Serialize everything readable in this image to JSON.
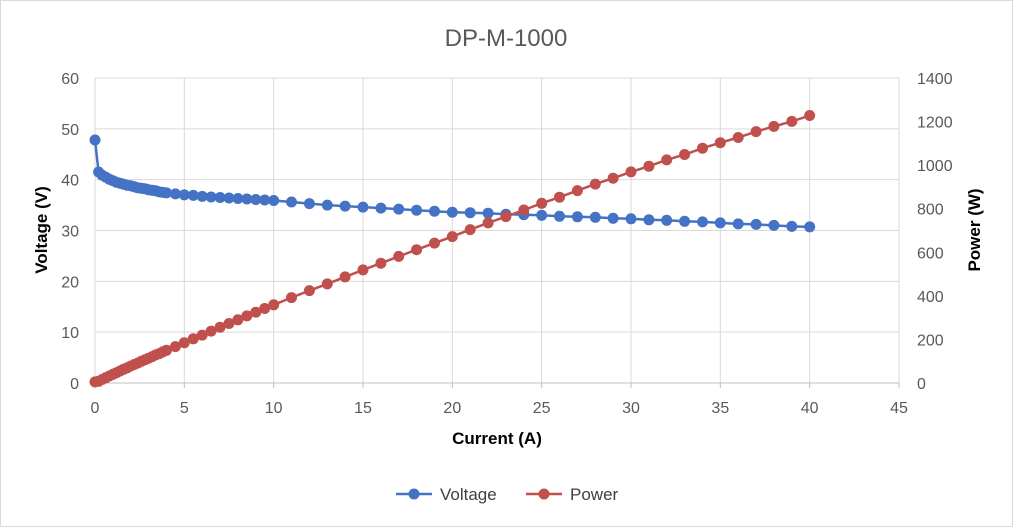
{
  "chart_data": {
    "type": "line",
    "title": "DP-M-1000",
    "xlabel": "Current (A)",
    "ylabel": "Voltage (V)",
    "y2label": "Power (W)",
    "xlim": [
      0,
      45
    ],
    "ylim": [
      0,
      60
    ],
    "y2lim": [
      0,
      1400
    ],
    "xticks": [
      "0",
      "5",
      "10",
      "15",
      "20",
      "25",
      "30",
      "35",
      "40",
      "45"
    ],
    "yticks": [
      "0",
      "10",
      "20",
      "30",
      "40",
      "50",
      "60"
    ],
    "y2ticks": [
      "0",
      "200",
      "400",
      "600",
      "800",
      "1000",
      "1200",
      "1400"
    ],
    "grid": true,
    "legend_position": "bottom",
    "series": [
      {
        "name": "Voltage",
        "axis": "left",
        "color": "#4472c4",
        "x": [
          0,
          0.2,
          0.4,
          0.6,
          0.8,
          1.0,
          1.2,
          1.4,
          1.6,
          1.8,
          2.0,
          2.2,
          2.4,
          2.6,
          2.8,
          3.0,
          3.2,
          3.4,
          3.6,
          3.8,
          4,
          4.5,
          5,
          5.5,
          6,
          6.5,
          7,
          7.5,
          8,
          8.5,
          9,
          9.5,
          10,
          11,
          12,
          13,
          14,
          15,
          16,
          17,
          18,
          19,
          20,
          21,
          22,
          23,
          24,
          25,
          26,
          27,
          28,
          29,
          30,
          31,
          32,
          33,
          34,
          35,
          36,
          37,
          38,
          39,
          40
        ],
        "y": [
          47.8,
          41.5,
          40.9,
          40.5,
          40.1,
          39.8,
          39.5,
          39.3,
          39.1,
          38.9,
          38.8,
          38.6,
          38.4,
          38.3,
          38.2,
          38.0,
          37.9,
          37.8,
          37.6,
          37.5,
          37.4,
          37.2,
          37.0,
          36.9,
          36.7,
          36.6,
          36.5,
          36.4,
          36.3,
          36.2,
          36.1,
          36.0,
          35.9,
          35.6,
          35.3,
          35.0,
          34.8,
          34.6,
          34.4,
          34.2,
          34.0,
          33.8,
          33.6,
          33.5,
          33.4,
          33.2,
          33.1,
          33.0,
          32.8,
          32.7,
          32.6,
          32.4,
          32.3,
          32.1,
          32.0,
          31.8,
          31.7,
          31.5,
          31.3,
          31.2,
          31.0,
          30.8,
          30.7
        ]
      },
      {
        "name": "Power",
        "axis": "right",
        "color": "#c0504d",
        "x": [
          0,
          0.2,
          0.4,
          0.6,
          0.8,
          1.0,
          1.2,
          1.4,
          1.6,
          1.8,
          2.0,
          2.2,
          2.4,
          2.6,
          2.8,
          3.0,
          3.2,
          3.4,
          3.6,
          3.8,
          4,
          4.5,
          5,
          5.5,
          6,
          6.5,
          7,
          7.5,
          8,
          8.5,
          9,
          9.5,
          10,
          11,
          12,
          13,
          14,
          15,
          16,
          17,
          18,
          19,
          20,
          21,
          22,
          23,
          24,
          25,
          26,
          27,
          28,
          29,
          30,
          31,
          32,
          33,
          34,
          35,
          36,
          37,
          38,
          39,
          40
        ],
        "y": [
          5,
          8,
          16,
          24,
          32,
          40,
          47,
          55,
          63,
          70,
          78,
          85,
          92,
          100,
          107,
          114,
          121,
          129,
          135,
          143,
          150,
          167,
          185,
          203,
          220,
          238,
          256,
          273,
          290,
          308,
          325,
          342,
          359,
          392,
          424,
          455,
          487,
          519,
          550,
          581,
          612,
          642,
          672,
          704,
          735,
          764,
          794,
          825,
          853,
          883,
          913,
          940,
          969,
          995,
          1024,
          1049,
          1078,
          1103,
          1127,
          1154,
          1178,
          1201,
          1228
        ]
      }
    ]
  }
}
